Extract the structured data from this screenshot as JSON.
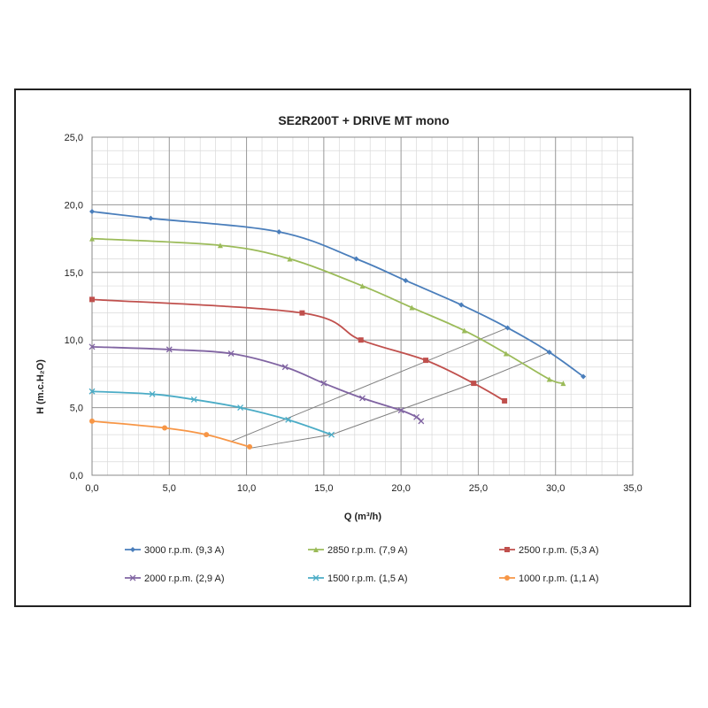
{
  "chart_data": {
    "type": "line",
    "title": "SE2R200T + DRIVE MT mono",
    "xlabel": "Q (m³/h)",
    "ylabel": "H (m.c.H₂O)",
    "xlim": [
      0,
      35
    ],
    "ylim": [
      0,
      25
    ],
    "x_ticks": [
      "0,0",
      "5,0",
      "10,0",
      "15,0",
      "20,0",
      "25,0",
      "30,0",
      "35,0"
    ],
    "y_ticks": [
      "0,0",
      "5,0",
      "10,0",
      "15,0",
      "20,0",
      "25,0"
    ],
    "grid": true,
    "legend_position": "bottom",
    "series": [
      {
        "name": "3000 r.p.m. (9,3 A)",
        "color": "#4a7ebb",
        "marker": "diamond",
        "points": [
          [
            0,
            19.5
          ],
          [
            3.8,
            19.0
          ],
          [
            12.1,
            18.0
          ],
          [
            17.1,
            16.0
          ],
          [
            20.3,
            14.4
          ],
          [
            23.9,
            12.6
          ],
          [
            26.9,
            10.9
          ],
          [
            29.6,
            9.1
          ],
          [
            31.8,
            7.3
          ]
        ]
      },
      {
        "name": "2850 r.p.m. (7,9 A)",
        "color": "#9bbb59",
        "marker": "triangle",
        "points": [
          [
            0,
            17.5
          ],
          [
            8.3,
            17.0
          ],
          [
            12.8,
            16.0
          ],
          [
            17.5,
            14.0
          ],
          [
            20.7,
            12.4
          ],
          [
            24.1,
            10.7
          ],
          [
            26.8,
            9.0
          ],
          [
            29.6,
            7.1
          ],
          [
            30.5,
            6.8
          ]
        ]
      },
      {
        "name": "2500 r.p.m. (5,3 A)",
        "color": "#c0504d",
        "marker": "square",
        "points": [
          [
            0,
            13.0
          ],
          [
            13.6,
            12.0
          ],
          [
            17.4,
            10.0
          ],
          [
            21.6,
            8.5
          ],
          [
            24.7,
            6.8
          ],
          [
            26.7,
            5.5
          ]
        ]
      },
      {
        "name": "2000 r.p.m. (2,9 A)",
        "color": "#8064a2",
        "marker": "x",
        "points": [
          [
            0,
            9.5
          ],
          [
            5.0,
            9.3
          ],
          [
            9.0,
            9.0
          ],
          [
            12.5,
            8.0
          ],
          [
            15.0,
            6.8
          ],
          [
            17.5,
            5.7
          ],
          [
            20.0,
            4.8
          ],
          [
            21.0,
            4.3
          ],
          [
            21.3,
            4.0
          ]
        ]
      },
      {
        "name": "1500 r.p.m. (1,5 A)",
        "color": "#4bacc6",
        "marker": "x",
        "points": [
          [
            0,
            6.2
          ],
          [
            3.9,
            6.0
          ],
          [
            6.6,
            5.6
          ],
          [
            9.6,
            5.0
          ],
          [
            12.7,
            4.1
          ],
          [
            15.5,
            3.0
          ]
        ]
      },
      {
        "name": "1000 r.p.m. (1,1 A)",
        "color": "#f79646",
        "marker": "circle",
        "points": [
          [
            0,
            4.0
          ],
          [
            4.7,
            3.5
          ],
          [
            7.4,
            3.0
          ],
          [
            10.2,
            2.1
          ]
        ]
      }
    ],
    "reference_lines": [
      {
        "color": "#808080",
        "points": [
          [
            9.0,
            2.5
          ],
          [
            26.9,
            10.9
          ]
        ]
      },
      {
        "color": "#808080",
        "points": [
          [
            10.2,
            2.0
          ],
          [
            15.5,
            3.0
          ],
          [
            24.7,
            6.8
          ],
          [
            29.6,
            9.1
          ]
        ]
      }
    ]
  }
}
